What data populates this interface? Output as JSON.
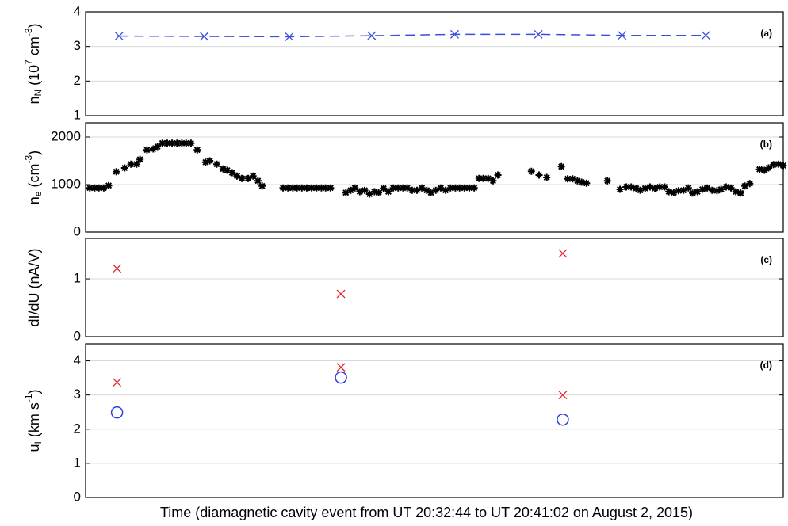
{
  "chart_data": [
    {
      "type": "scatter",
      "annotation": "(a)",
      "ylabel": [
        {
          "text": "n"
        },
        {
          "text": "N",
          "shift": "sub"
        },
        {
          "text": " (10"
        },
        {
          "text": "7",
          "shift": "super"
        },
        {
          "text": " cm"
        },
        {
          "text": "-3",
          "shift": "super"
        },
        {
          "text": ")"
        }
      ],
      "xlim": [
        0,
        100
      ],
      "ylim": [
        1,
        4
      ],
      "yticks": [
        1,
        2,
        3,
        4
      ],
      "grid": true,
      "series": [
        {
          "color": "#3a4fe0",
          "marker": "x",
          "line": "dashed",
          "x": [
            4.8,
            17.0,
            29.2,
            41.0,
            52.9,
            64.9,
            76.9,
            88.9
          ],
          "values": [
            3.3,
            3.29,
            3.28,
            3.31,
            3.35,
            3.35,
            3.32,
            3.32
          ]
        }
      ]
    },
    {
      "type": "scatter",
      "annotation": "(b)",
      "ylabel": [
        {
          "text": "n"
        },
        {
          "text": "e",
          "shift": "sub"
        },
        {
          "text": " (cm"
        },
        {
          "text": "-3",
          "shift": "super"
        },
        {
          "text": ")"
        }
      ],
      "xlim": [
        0,
        100
      ],
      "ylim": [
        0,
        2300
      ],
      "yticks": [
        0,
        1000,
        2000
      ],
      "grid": true,
      "series": [
        {
          "color": "#000000",
          "marker": "asterisk",
          "x": [
            0.6,
            1.3,
            1.9,
            2.6,
            3.3,
            4.4,
            5.6,
            6.5,
            7.3,
            7.8,
            8.8,
            9.7,
            10.3,
            11.0,
            11.7,
            12.4,
            13.1,
            13.8,
            14.4,
            15.1,
            16.0,
            17.2,
            17.8,
            18.8,
            19.7,
            20.3,
            21.0,
            21.7,
            22.4,
            23.3,
            24.0,
            24.7,
            25.3,
            28.3,
            29.0,
            29.7,
            30.3,
            31.0,
            31.7,
            32.4,
            33.1,
            33.8,
            34.4,
            35.1,
            37.3,
            38.0,
            38.6,
            39.3,
            40.0,
            40.7,
            41.4,
            42.0,
            42.7,
            43.4,
            44.1,
            44.8,
            45.5,
            46.1,
            46.8,
            47.5,
            48.2,
            48.9,
            49.5,
            50.2,
            50.9,
            51.6,
            52.3,
            53.0,
            53.6,
            54.3,
            55.0,
            55.7,
            56.4,
            57.0,
            57.7,
            58.4,
            59.1,
            63.9,
            65.0,
            66.1,
            68.2,
            69.1,
            69.8,
            70.5,
            71.1,
            71.8,
            74.8,
            76.6,
            77.5,
            78.2,
            78.9,
            79.5,
            80.2,
            80.9,
            81.6,
            82.3,
            83.0,
            83.6,
            84.3,
            85.0,
            85.7,
            86.4,
            87.0,
            87.7,
            88.4,
            89.1,
            89.8,
            90.5,
            91.1,
            91.8,
            92.5,
            93.2,
            93.9,
            94.5,
            95.2,
            96.6,
            97.3,
            97.9,
            98.6,
            99.3,
            100
          ],
          "values": [
            930,
            930,
            930,
            930,
            980,
            1270,
            1350,
            1430,
            1430,
            1530,
            1730,
            1750,
            1800,
            1870,
            1870,
            1870,
            1870,
            1870,
            1870,
            1870,
            1730,
            1470,
            1500,
            1430,
            1330,
            1300,
            1250,
            1180,
            1130,
            1130,
            1180,
            1080,
            970,
            930,
            930,
            930,
            930,
            930,
            930,
            930,
            930,
            930,
            930,
            930,
            830,
            880,
            930,
            850,
            880,
            800,
            850,
            830,
            920,
            850,
            930,
            930,
            930,
            930,
            880,
            880,
            930,
            880,
            830,
            880,
            930,
            880,
            930,
            930,
            930,
            930,
            930,
            930,
            1130,
            1130,
            1130,
            1080,
            1200,
            1280,
            1200,
            1150,
            1380,
            1120,
            1120,
            1080,
            1050,
            1030,
            1080,
            900,
            950,
            950,
            920,
            880,
            920,
            950,
            920,
            950,
            950,
            850,
            830,
            870,
            880,
            930,
            820,
            850,
            900,
            930,
            880,
            870,
            900,
            950,
            930,
            850,
            820,
            970,
            1020,
            1320,
            1300,
            1350,
            1420,
            1430,
            1400
          ]
        }
      ]
    },
    {
      "type": "scatter",
      "annotation": "(c)",
      "ylabel": [
        {
          "text": "dI/dU (nA/V)"
        }
      ],
      "xlim": [
        0,
        100
      ],
      "ylim": [
        0,
        1.7
      ],
      "yticks": [
        0,
        1
      ],
      "grid": true,
      "series": [
        {
          "color": "#e8242a",
          "marker": "x",
          "x": [
            4.5,
            36.6,
            68.4
          ],
          "values": [
            1.18,
            0.74,
            1.44
          ]
        }
      ]
    },
    {
      "type": "scatter",
      "annotation": "(d)",
      "ylabel": [
        {
          "text": "u"
        },
        {
          "text": "I",
          "shift": "sub"
        },
        {
          "text": " (km s"
        },
        {
          "text": "-1",
          "shift": "super"
        },
        {
          "text": ")"
        }
      ],
      "xlabel": "Time (diamagnetic cavity event from UT 20:32:44 to UT 20:41:02 on August 2, 2015)",
      "xlim": [
        0,
        100
      ],
      "ylim": [
        0,
        4.5
      ],
      "yticks": [
        0,
        1,
        2,
        3,
        4
      ],
      "grid": true,
      "series": [
        {
          "color": "#e8242a",
          "marker": "x",
          "x": [
            4.5,
            36.6,
            68.4
          ],
          "values": [
            3.37,
            3.81,
            3.0
          ]
        },
        {
          "color": "#2b3ee6",
          "marker": "circle",
          "x": [
            4.5,
            36.6,
            68.4
          ],
          "values": [
            2.49,
            3.51,
            2.28
          ]
        }
      ]
    }
  ]
}
